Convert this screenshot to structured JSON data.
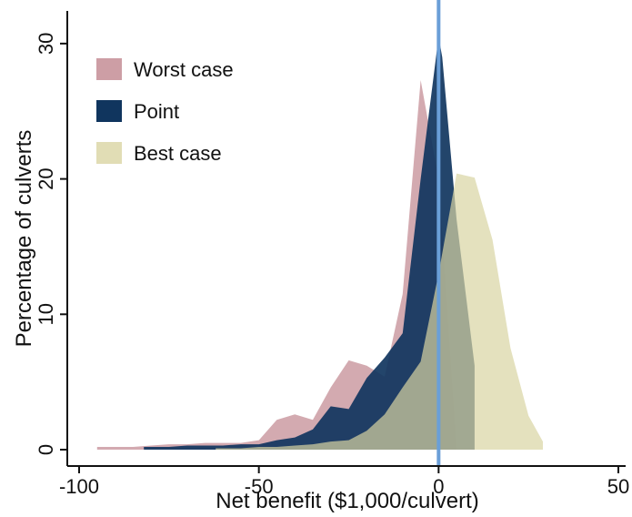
{
  "chart_data": {
    "type": "area",
    "xlabel": "Net benefit ($1,000/culvert)",
    "ylabel": "Percentage of culverts",
    "xlim": [
      -100,
      50
    ],
    "ylim": [
      0,
      31
    ],
    "xticks": [
      -100,
      -50,
      0,
      50
    ],
    "xtick_labels": [
      "-100",
      "-50",
      "0",
      "50"
    ],
    "yticks": [
      0,
      10,
      20,
      30
    ],
    "ytick_labels": [
      "0",
      "10",
      "20",
      "30"
    ],
    "legend_position": "top-left",
    "reference_line": {
      "x": 0,
      "color": "#6a9fd8"
    },
    "series": [
      {
        "name": "Worst case",
        "color": "#c48d95",
        "opacity": 0.75,
        "x": [
          -95,
          -90,
          -85,
          -80,
          -75,
          -70,
          -65,
          -60,
          -55,
          -50,
          -45,
          -40,
          -35,
          -30,
          -25,
          -20,
          -15,
          -10,
          -5,
          0,
          5
        ],
        "values": [
          0.2,
          0.2,
          0.2,
          0.3,
          0.4,
          0.4,
          0.5,
          0.5,
          0.5,
          0.7,
          2.2,
          2.6,
          2.2,
          4.6,
          6.6,
          6.2,
          5.4,
          11.5,
          27.3,
          20.0,
          0.0
        ]
      },
      {
        "name": "Point",
        "color": "#10355e",
        "opacity": 0.92,
        "x": [
          -82,
          -75,
          -70,
          -65,
          -60,
          -55,
          -50,
          -45,
          -40,
          -35,
          -30,
          -25,
          -20,
          -15,
          -10,
          -5,
          0,
          1,
          5,
          10
        ],
        "values": [
          0.2,
          0.2,
          0.3,
          0.3,
          0.3,
          0.4,
          0.4,
          0.7,
          0.9,
          1.5,
          3.2,
          3.0,
          5.3,
          6.8,
          8.6,
          20.0,
          30.5,
          29.0,
          17.0,
          6.2
        ]
      },
      {
        "name": "Best case",
        "color": "#d9d4a3",
        "opacity": 0.7,
        "x": [
          -62,
          -55,
          -50,
          -45,
          -40,
          -35,
          -30,
          -25,
          -20,
          -15,
          -10,
          -5,
          0,
          5,
          10,
          15,
          20,
          25,
          29
        ],
        "values": [
          0.1,
          0.1,
          0.2,
          0.2,
          0.3,
          0.4,
          0.6,
          0.7,
          1.4,
          2.6,
          4.6,
          6.5,
          13.0,
          20.4,
          20.1,
          15.5,
          7.5,
          2.5,
          0.6
        ]
      }
    ]
  }
}
